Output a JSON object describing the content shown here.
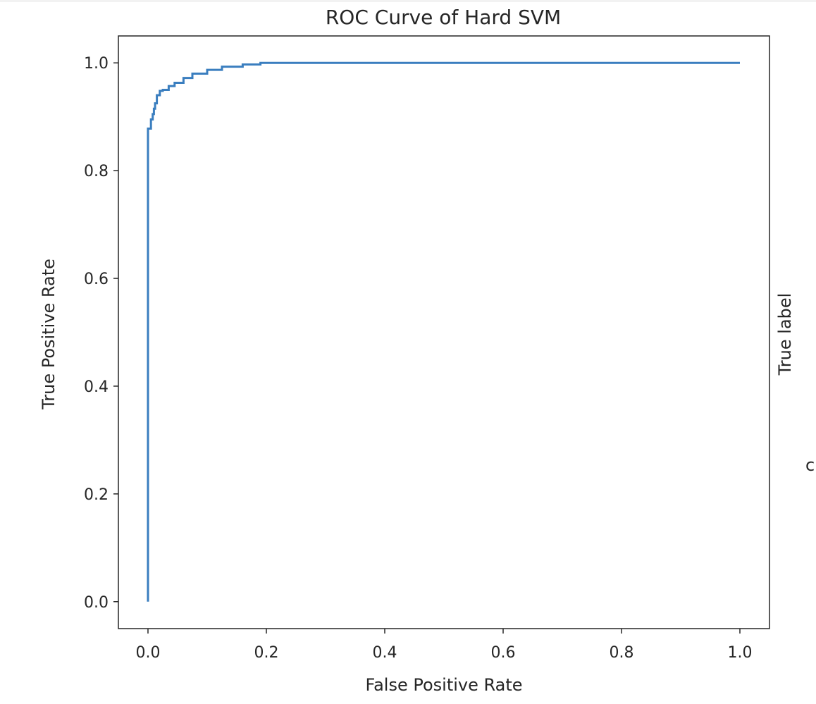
{
  "chart_data": {
    "type": "line",
    "title": "ROC Curve of Hard SVM",
    "xlabel": "False Positive Rate",
    "ylabel": "True Positive Rate",
    "xlim": [
      -0.05,
      1.05
    ],
    "ylim": [
      -0.05,
      1.05
    ],
    "xticks": [
      0.0,
      0.2,
      0.4,
      0.6,
      0.8,
      1.0
    ],
    "yticks": [
      0.0,
      0.2,
      0.4,
      0.6,
      0.8,
      1.0
    ],
    "xtick_labels": [
      "0.0",
      "0.2",
      "0.4",
      "0.6",
      "0.8",
      "1.0"
    ],
    "ytick_labels": [
      "0.0",
      "0.2",
      "0.4",
      "0.6",
      "0.8",
      "1.0"
    ],
    "grid": false,
    "line_color": "#3a7ebf",
    "series": [
      {
        "x": [
          0.0,
          0.0,
          0.005,
          0.005,
          0.008,
          0.008,
          0.01,
          0.01,
          0.012,
          0.012,
          0.015,
          0.015,
          0.02,
          0.02,
          0.025,
          0.025,
          0.035,
          0.035,
          0.045,
          0.045,
          0.06,
          0.06,
          0.075,
          0.075,
          0.1,
          0.1,
          0.125,
          0.125,
          0.16,
          0.16,
          0.19,
          0.19,
          1.0
        ],
        "y": [
          0.0,
          0.878,
          0.878,
          0.895,
          0.895,
          0.905,
          0.905,
          0.915,
          0.915,
          0.925,
          0.925,
          0.94,
          0.94,
          0.948,
          0.948,
          0.95,
          0.95,
          0.957,
          0.957,
          0.963,
          0.963,
          0.972,
          0.972,
          0.98,
          0.98,
          0.987,
          0.987,
          0.993,
          0.993,
          0.997,
          0.997,
          1.0,
          1.0
        ]
      }
    ]
  },
  "side": {
    "ylabel_fragment": "True label",
    "char_fragment": "c"
  }
}
